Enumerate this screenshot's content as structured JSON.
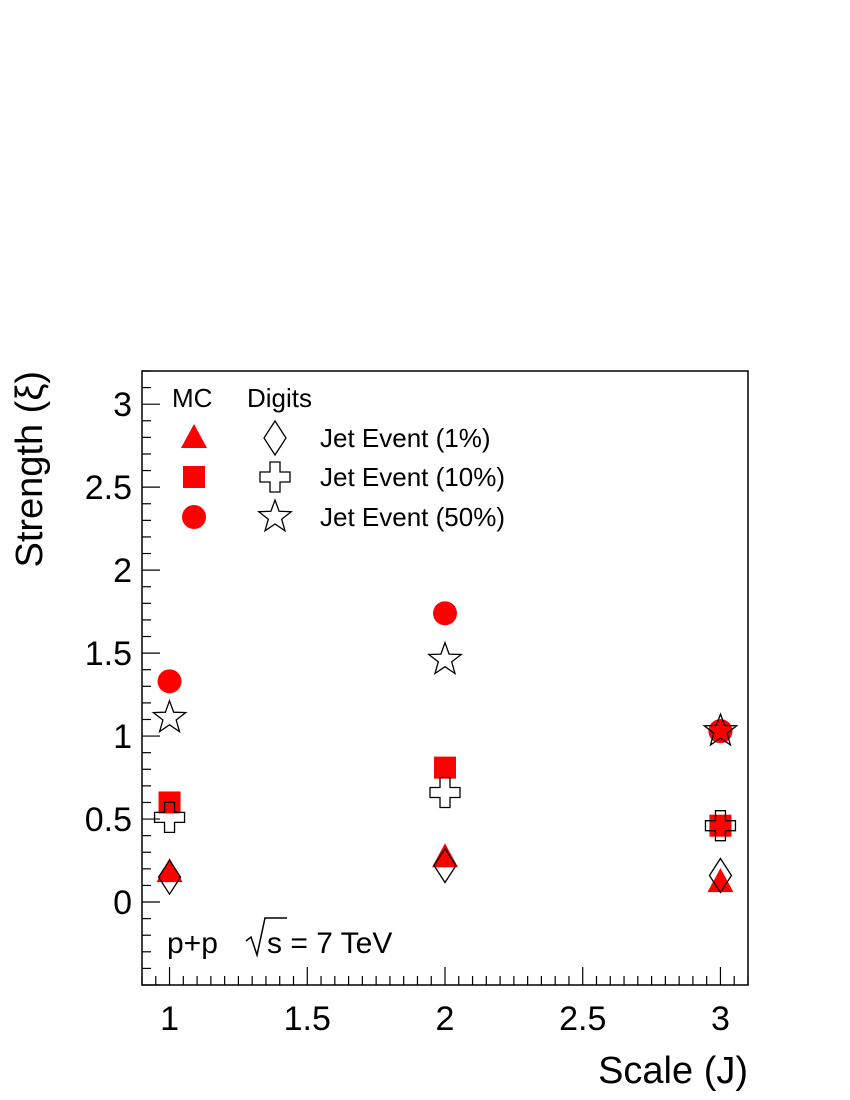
{
  "chart_data": {
    "type": "scatter",
    "xlabel": "Scale (J)",
    "ylabel": "Strength (ξ)",
    "xlim": [
      0.9,
      3.1
    ],
    "ylim": [
      -0.5,
      3.2
    ],
    "xticks": [
      1,
      1.5,
      2,
      2.5,
      3
    ],
    "xtick_labels": [
      "1",
      "1.5",
      "2",
      "2.5",
      "3"
    ],
    "yticks": [
      0,
      0.5,
      1,
      1.5,
      2,
      2.5,
      3
    ],
    "ytick_labels": [
      "0",
      "0.5",
      "1",
      "1.5",
      "2",
      "2.5",
      "3"
    ],
    "grid": false,
    "legend": {
      "position": "top-left",
      "column_headers": [
        "MC",
        "Digits"
      ],
      "entries": [
        "Jet Event (1%)",
        "Jet Event (10%)",
        "Jet Event (50%)"
      ]
    },
    "annotation": {
      "text_before": "p+p",
      "sqrt_symbol": "√",
      "text_after": "s = 7 TeV"
    },
    "series": [
      {
        "name": "Jet Event (1%)",
        "group": "MC",
        "marker": "triangle-filled",
        "color": "#ff0000",
        "x": [
          1,
          2,
          3
        ],
        "y": [
          0.18,
          0.27,
          0.12
        ]
      },
      {
        "name": "Jet Event (10%)",
        "group": "MC",
        "marker": "square-filled",
        "color": "#ff0000",
        "x": [
          1,
          2,
          3
        ],
        "y": [
          0.6,
          0.81,
          0.46
        ]
      },
      {
        "name": "Jet Event (50%)",
        "group": "MC",
        "marker": "circle-filled",
        "color": "#ff0000",
        "x": [
          1,
          2,
          3
        ],
        "y": [
          1.33,
          1.74,
          1.03
        ]
      },
      {
        "name": "Jet Event (1%)",
        "group": "Digits",
        "marker": "diamond-open",
        "color": "#000000",
        "x": [
          1,
          2,
          3
        ],
        "y": [
          0.15,
          0.22,
          0.16
        ]
      },
      {
        "name": "Jet Event (10%)",
        "group": "Digits",
        "marker": "cross-open",
        "color": "#000000",
        "x": [
          1,
          2,
          3
        ],
        "y": [
          0.51,
          0.66,
          0.46
        ]
      },
      {
        "name": "Jet Event (50%)",
        "group": "Digits",
        "marker": "star-open",
        "color": "#000000",
        "x": [
          1,
          2,
          3
        ],
        "y": [
          1.11,
          1.46,
          1.03
        ]
      }
    ]
  }
}
